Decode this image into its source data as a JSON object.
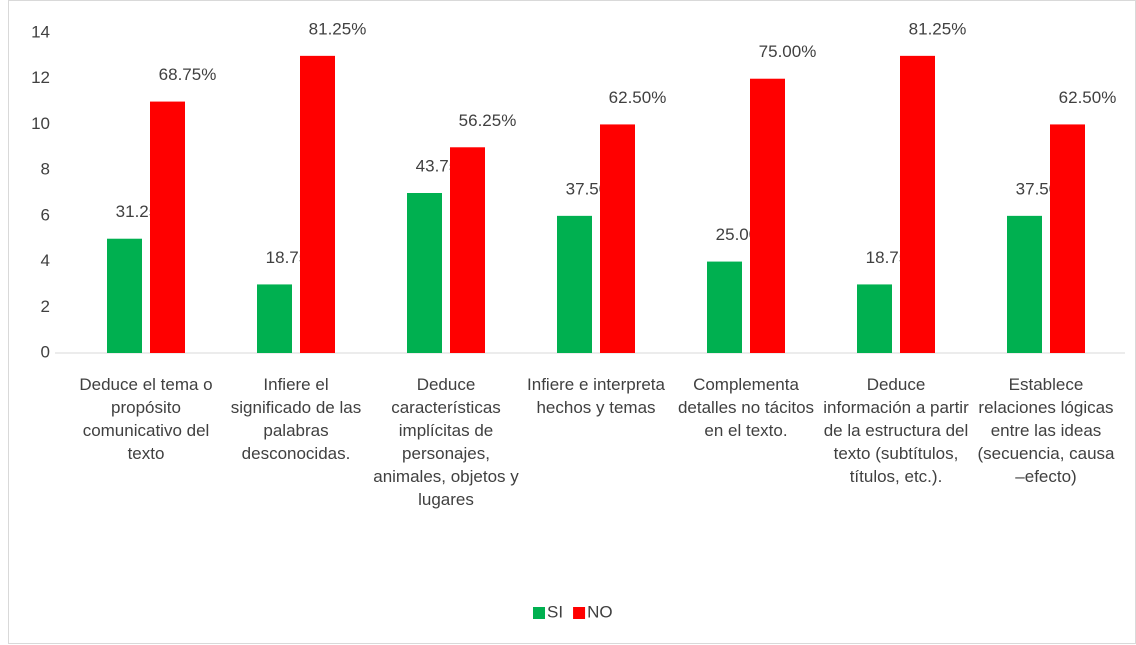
{
  "chart_data": {
    "type": "bar",
    "categories": [
      "Deduce el tema o propósito comunicativo del texto",
      "Infiere el significado de las palabras desconocidas.",
      "Deduce características implícitas de personajes, animales, objetos y lugares",
      "Infiere e interpreta hechos y temas",
      "Complementa detalles no tácitos en el texto.",
      "Deduce información a partir de la estructura del texto (subtítulos, títulos, etc.).",
      "Establece relaciones lógicas entre las ideas (secuencia, causa –efecto)"
    ],
    "series": [
      {
        "name": "SI",
        "color": "#00b050",
        "values": [
          5,
          3,
          7,
          6,
          4,
          3,
          6
        ],
        "value_labels": [
          "31.25%",
          "18.75%",
          "43.75%",
          "37.50%",
          "25.00%",
          "18.75%",
          "37.50%"
        ]
      },
      {
        "name": "NO",
        "color": "#ff0000",
        "values": [
          11,
          13,
          9,
          10,
          12,
          13,
          10
        ],
        "value_labels": [
          "68.75%",
          "81.25%",
          "56.25%",
          "62.50%",
          "75.00%",
          "81.25%",
          "62.50%"
        ]
      }
    ],
    "ylim": [
      0,
      14
    ],
    "yticks": [
      0,
      2,
      4,
      6,
      8,
      10,
      12,
      14
    ],
    "grid": false,
    "legend": "bottom"
  }
}
